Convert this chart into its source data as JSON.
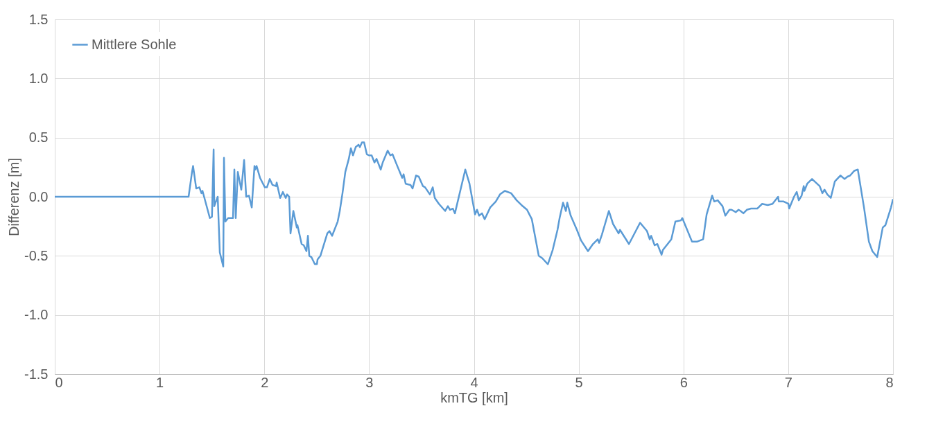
{
  "chart_data": {
    "type": "line",
    "xlabel": "kmTG [km]",
    "ylabel": "Differenz [m]",
    "xlim": [
      0,
      8
    ],
    "xticks": [
      0,
      1,
      2,
      3,
      4,
      5,
      6,
      7,
      8
    ],
    "ylim": [
      -1.5,
      1.5
    ],
    "yticks": [
      {
        "value": -1.5,
        "label": "-1.5"
      },
      {
        "value": -1,
        "label": "-1.0"
      },
      {
        "value": -0.5,
        "label": "-0.5"
      },
      {
        "value": 0,
        "label": "0.0"
      },
      {
        "value": 0.5,
        "label": "0.5"
      },
      {
        "value": 1,
        "label": "1.0"
      },
      {
        "value": 1.5,
        "label": "1.5"
      }
    ],
    "grid": true,
    "legend": "top left",
    "marker": "none",
    "line_style": "solid",
    "series": [
      {
        "name": "Mittlere Sohle",
        "color": "#5b9bd5",
        "x": [
          0,
          1.277,
          1.31,
          1.32,
          1.35,
          1.38,
          1.4,
          1.41,
          1.48,
          1.5,
          1.516,
          1.522,
          1.542,
          1.555,
          1.575,
          1.608,
          1.615,
          1.628,
          1.655,
          1.694,
          1.701,
          1.714,
          1.727,
          1.747,
          1.78,
          1.807,
          1.827,
          1.853,
          1.88,
          1.906,
          1.913,
          1.926,
          1.959,
          2.005,
          2.025,
          2.052,
          2.078,
          2.111,
          2.118,
          2.151,
          2.177,
          2.204,
          2.217,
          2.237,
          2.25,
          2.277,
          2.31,
          2.316,
          2.356,
          2.376,
          2.402,
          2.416,
          2.429,
          2.449,
          2.482,
          2.502,
          2.508,
          2.535,
          2.601,
          2.621,
          2.647,
          2.7,
          2.72,
          2.746,
          2.773,
          2.806,
          2.826,
          2.846,
          2.872,
          2.899,
          2.912,
          2.932,
          2.952,
          2.978,
          2.998,
          3.024,
          3.051,
          3.071,
          3.111,
          3.13,
          3.177,
          3.203,
          3.223,
          3.269,
          3.316,
          3.329,
          3.349,
          3.395,
          3.415,
          3.448,
          3.474,
          3.514,
          3.534,
          3.58,
          3.607,
          3.627,
          3.666,
          3.726,
          3.752,
          3.772,
          3.799,
          3.819,
          3.918,
          3.958,
          4.011,
          4.03,
          4.05,
          4.077,
          4.103,
          4.156,
          4.209,
          4.249,
          4.295,
          4.355,
          4.408,
          4.454,
          4.507,
          4.553,
          4.619,
          4.653,
          4.706,
          4.752,
          4.798,
          4.818,
          4.851,
          4.878,
          4.891,
          4.924,
          4.983,
          5.023,
          5.089,
          5.136,
          5.182,
          5.195,
          5.222,
          5.288,
          5.328,
          5.381,
          5.394,
          5.48,
          5.586,
          5.652,
          5.678,
          5.692,
          5.725,
          5.751,
          5.791,
          5.804,
          5.884,
          5.923,
          5.976,
          5.989,
          6.082,
          6.128,
          6.188,
          6.221,
          6.274,
          6.294,
          6.327,
          6.373,
          6.4,
          6.439,
          6.459,
          6.499,
          6.526,
          6.545,
          6.572,
          6.605,
          6.645,
          6.704,
          6.751,
          6.804,
          6.85,
          6.903,
          6.91,
          6.956,
          7.002,
          7.009,
          7.055,
          7.081,
          7.101,
          7.128,
          7.148,
          7.154,
          7.181,
          7.227,
          7.3,
          7.326,
          7.346,
          7.373,
          7.406,
          7.445,
          7.498,
          7.538,
          7.565,
          7.591,
          7.631,
          7.664,
          7.723,
          7.77,
          7.803,
          7.849,
          7.902,
          7.928,
          7.981,
          8.0
        ],
        "values": [
          0,
          0,
          0.21,
          0.26,
          0.07,
          0.08,
          0.03,
          0.05,
          -0.18,
          -0.17,
          0.4,
          -0.08,
          -0.03,
          0,
          -0.47,
          -0.59,
          0.33,
          -0.21,
          -0.18,
          -0.18,
          -0.18,
          0.23,
          -0.18,
          0.21,
          0.06,
          0.31,
          0,
          0.01,
          -0.09,
          0.26,
          0.23,
          0.26,
          0.16,
          0.08,
          0.08,
          0.15,
          0.1,
          0.09,
          0.12,
          -0.01,
          0.04,
          -0.01,
          0.02,
          0,
          -0.31,
          -0.12,
          -0.26,
          -0.24,
          -0.4,
          -0.41,
          -0.46,
          -0.33,
          -0.5,
          -0.51,
          -0.57,
          -0.57,
          -0.53,
          -0.5,
          -0.31,
          -0.29,
          -0.33,
          -0.21,
          -0.12,
          0.03,
          0.21,
          0.32,
          0.41,
          0.35,
          0.42,
          0.44,
          0.42,
          0.46,
          0.46,
          0.36,
          0.35,
          0.35,
          0.29,
          0.32,
          0.23,
          0.29,
          0.39,
          0.35,
          0.36,
          0.26,
          0.16,
          0.19,
          0.11,
          0.1,
          0.07,
          0.18,
          0.17,
          0.09,
          0.08,
          0.02,
          0.08,
          -0.01,
          -0.06,
          -0.12,
          -0.08,
          -0.11,
          -0.1,
          -0.14,
          0.23,
          0.11,
          -0.15,
          -0.11,
          -0.16,
          -0.14,
          -0.19,
          -0.09,
          -0.04,
          0.02,
          0.05,
          0.03,
          -0.03,
          -0.07,
          -0.11,
          -0.19,
          -0.5,
          -0.52,
          -0.57,
          -0.45,
          -0.28,
          -0.18,
          -0.05,
          -0.12,
          -0.05,
          -0.16,
          -0.28,
          -0.37,
          -0.46,
          -0.4,
          -0.36,
          -0.39,
          -0.32,
          -0.12,
          -0.23,
          -0.31,
          -0.28,
          -0.4,
          -0.22,
          -0.29,
          -0.36,
          -0.33,
          -0.41,
          -0.4,
          -0.49,
          -0.45,
          -0.36,
          -0.21,
          -0.2,
          -0.18,
          -0.38,
          -0.38,
          -0.36,
          -0.15,
          0.01,
          -0.04,
          -0.03,
          -0.08,
          -0.16,
          -0.11,
          -0.11,
          -0.13,
          -0.11,
          -0.12,
          -0.14,
          -0.11,
          -0.1,
          -0.1,
          -0.06,
          -0.07,
          -0.06,
          0.0,
          -0.04,
          -0.04,
          -0.06,
          -0.1,
          0,
          0.04,
          -0.03,
          0.01,
          0.09,
          0.05,
          0.11,
          0.15,
          0.09,
          0.03,
          0.06,
          0.02,
          -0.01,
          0.13,
          0.18,
          0.15,
          0.17,
          0.18,
          0.22,
          0.23,
          -0.09,
          -0.38,
          -0.46,
          -0.51,
          -0.26,
          -0.24,
          -0.09,
          -0.02
        ]
      }
    ]
  }
}
